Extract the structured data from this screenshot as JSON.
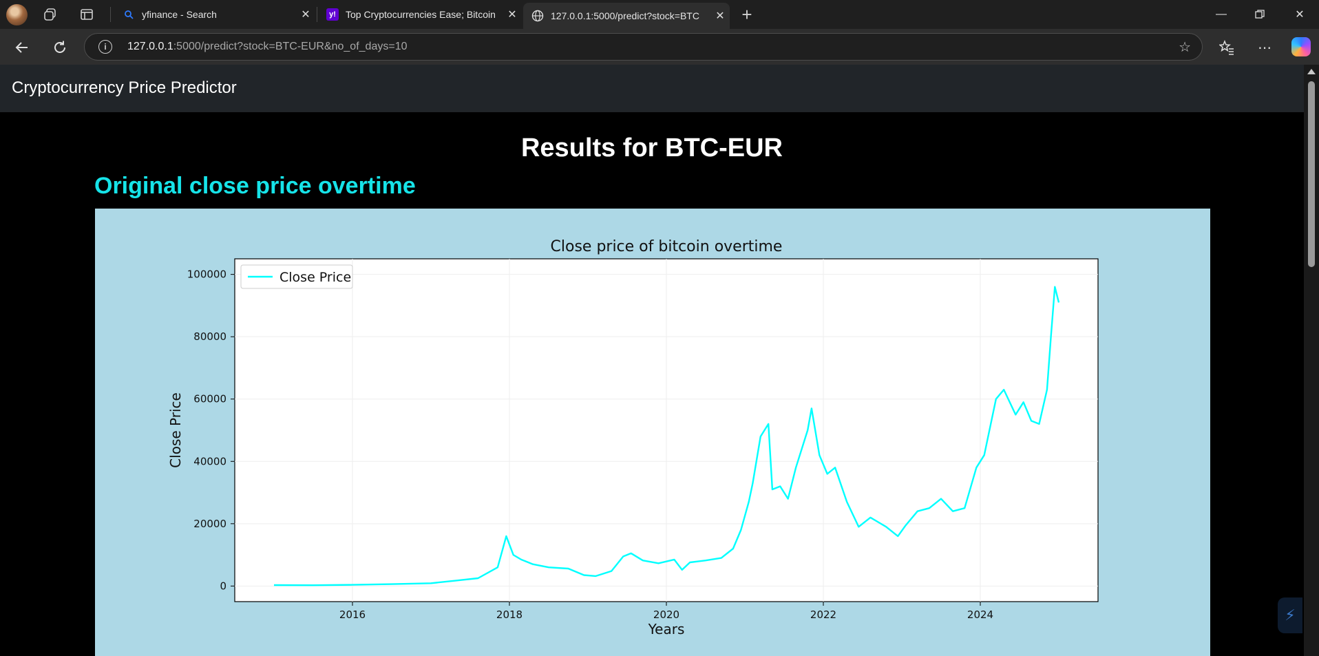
{
  "browser": {
    "tabs": [
      {
        "title": "yfinance - Search",
        "favicon": "search-icon",
        "active": false
      },
      {
        "title": "Top Cryptocurrencies Ease; Bitcoin",
        "favicon": "yahoo-icon",
        "active": false
      },
      {
        "title": "127.0.0.1:5000/predict?stock=BTC",
        "favicon": "globe-icon",
        "active": true
      }
    ],
    "new_tab_label": "+",
    "url_host": "127.0.0.1",
    "url_rest": ":5000/predict?stock=BTC-EUR&no_of_days=10"
  },
  "app": {
    "brand": "Cryptocurrency Price Predictor",
    "results_title": "Results for BTC-EUR",
    "section_title": "Original close price overtime"
  },
  "colors": {
    "accent": "#16e3e8",
    "chart_bg": "#add8e6",
    "line": "#00ffff"
  },
  "chart_data": {
    "type": "line",
    "title": "Close price of bitcoin overtime",
    "xlabel": "Years",
    "ylabel": "Close Price",
    "legend": "top-left",
    "grid": true,
    "xlim": [
      2014.5,
      2025.5
    ],
    "ylim": [
      -5000,
      105000
    ],
    "xticks": [
      2016,
      2018,
      2020,
      2022,
      2024
    ],
    "yticks": [
      0,
      20000,
      40000,
      60000,
      80000,
      100000
    ],
    "series": [
      {
        "name": "Close Price",
        "x": [
          2015.0,
          2015.5,
          2016.0,
          2016.5,
          2017.0,
          2017.3,
          2017.6,
          2017.85,
          2017.96,
          2018.05,
          2018.15,
          2018.3,
          2018.5,
          2018.75,
          2018.95,
          2019.1,
          2019.3,
          2019.45,
          2019.55,
          2019.7,
          2019.9,
          2020.1,
          2020.2,
          2020.3,
          2020.5,
          2020.7,
          2020.85,
          2020.95,
          2021.05,
          2021.1,
          2021.2,
          2021.3,
          2021.35,
          2021.45,
          2021.55,
          2021.65,
          2021.8,
          2021.85,
          2021.95,
          2022.05,
          2022.15,
          2022.3,
          2022.45,
          2022.6,
          2022.8,
          2022.95,
          2023.05,
          2023.2,
          2023.35,
          2023.5,
          2023.65,
          2023.8,
          2023.95,
          2024.05,
          2024.2,
          2024.3,
          2024.45,
          2024.55,
          2024.65,
          2024.75,
          2024.85,
          2024.9,
          2024.95,
          2025.0
        ],
        "y": [
          300,
          250,
          400,
          600,
          900,
          1700,
          2500,
          6000,
          16000,
          10000,
          8500,
          7000,
          6000,
          5600,
          3500,
          3200,
          4800,
          9500,
          10500,
          8200,
          7300,
          8500,
          5200,
          7600,
          8200,
          9000,
          12000,
          18000,
          27000,
          33000,
          48000,
          52000,
          31000,
          32000,
          28000,
          38000,
          50000,
          57000,
          42000,
          36000,
          38000,
          27000,
          19000,
          22000,
          19000,
          16000,
          19500,
          24000,
          25000,
          28000,
          24000,
          25000,
          38000,
          42000,
          60000,
          63000,
          55000,
          59000,
          53000,
          52000,
          63000,
          80000,
          96000,
          91000
        ]
      }
    ]
  }
}
